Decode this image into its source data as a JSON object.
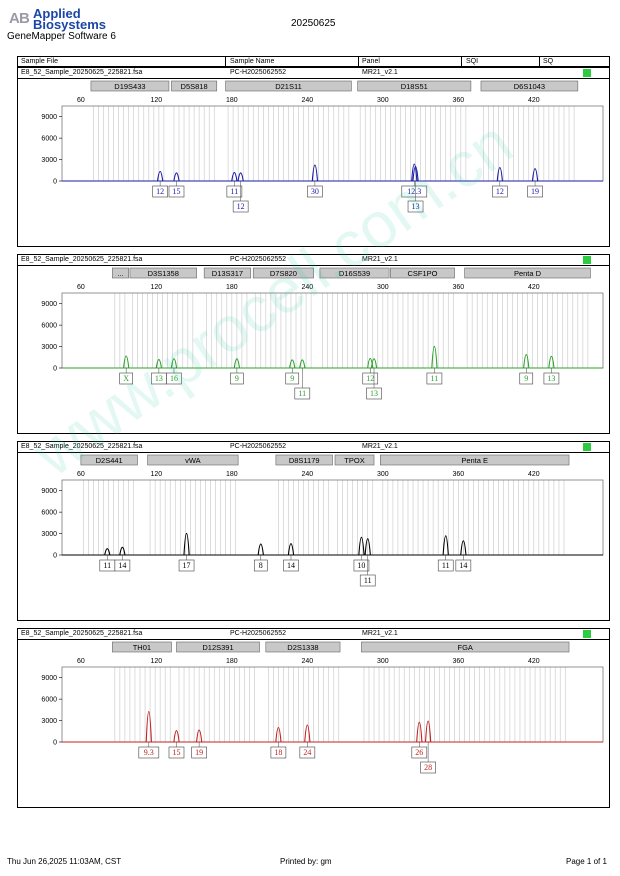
{
  "header": {
    "brand_line1": "Applied",
    "brand_line2": "Biosystems",
    "software": "GeneMapper Software 6",
    "run_date": "20250625"
  },
  "columns": [
    "Sample File",
    "Sample Name",
    "Panel",
    "SQI",
    "SQ"
  ],
  "footer": {
    "printed_at": "Thu Jun 26,2025 11:03AM, CST",
    "printed_by": "Printed by: gm",
    "page": "Page 1 of 1"
  },
  "watermark": "www.procell.com.cn",
  "colors": {
    "blue": "#1a1aa6",
    "green": "#2ca02c",
    "black": "#000000",
    "red": "#c02020",
    "sq_ok": "#2ecc40"
  },
  "chart_data": [
    {
      "type": "line",
      "sample_file": "E8_52_Sample_20250625_225821.fsa",
      "sample_name": "PC-H2025062552",
      "panel": "MR21_v2.1",
      "color": "#1a1aa6",
      "xlim": [
        45,
        475
      ],
      "ylim": [
        0,
        10500
      ],
      "x_ticks": [
        60,
        120,
        180,
        240,
        300,
        360,
        420
      ],
      "y_ticks": [
        0,
        3000,
        6000,
        9000
      ],
      "markers": [
        {
          "name": "D19S433",
          "range": [
            68,
            130
          ]
        },
        {
          "name": "D5S818",
          "range": [
            132,
            168
          ]
        },
        {
          "name": "D21S11",
          "range": [
            175,
            275
          ]
        },
        {
          "name": "D18S51",
          "range": [
            280,
            370
          ]
        },
        {
          "name": "D6S1043",
          "range": [
            378,
            455
          ]
        }
      ],
      "peaks": [
        {
          "x": 123,
          "h": 2100,
          "labels": [
            "12"
          ]
        },
        {
          "x": 136,
          "h": 1700,
          "labels": [
            "15"
          ]
        },
        {
          "x": 182,
          "h": 1800,
          "labels": [
            "11"
          ]
        },
        {
          "x": 187,
          "h": 1700,
          "labels": [
            "12"
          ]
        },
        {
          "x": 246,
          "h": 3900,
          "labels": [
            "30"
          ]
        },
        {
          "x": 325,
          "h": 4200,
          "labels": [
            "12.3"
          ]
        },
        {
          "x": 326,
          "h": 3500,
          "labels": [
            "13"
          ]
        },
        {
          "x": 393,
          "h": 3200,
          "labels": [
            "12"
          ]
        },
        {
          "x": 421,
          "h": 2900,
          "labels": [
            "19"
          ]
        }
      ],
      "label_rows": [
        0,
        0,
        0,
        1,
        0,
        0,
        1,
        0,
        0
      ]
    },
    {
      "type": "line",
      "sample_file": "E8_52_Sample_20250625_225821.fsa",
      "sample_name": "PC-H2025062552",
      "panel": "MR21_v2.1",
      "color": "#2ca02c",
      "xlim": [
        45,
        475
      ],
      "ylim": [
        0,
        10500
      ],
      "x_ticks": [
        60,
        120,
        180,
        240,
        300,
        360,
        420
      ],
      "y_ticks": [
        0,
        3000,
        6000,
        9000
      ],
      "markers": [
        {
          "name": "...",
          "range": [
            85,
            98
          ]
        },
        {
          "name": "D3S1358",
          "range": [
            99,
            152
          ]
        },
        {
          "name": "D13S317",
          "range": [
            158,
            195
          ]
        },
        {
          "name": "D7S820",
          "range": [
            197,
            245
          ]
        },
        {
          "name": "D16S539",
          "range": [
            250,
            305
          ]
        },
        {
          "name": "CSF1PO",
          "range": [
            306,
            357
          ]
        },
        {
          "name": "Penta D",
          "range": [
            365,
            465
          ]
        }
      ],
      "peaks": [
        {
          "x": 96,
          "h": 2800,
          "labels": [
            "X"
          ]
        },
        {
          "x": 122,
          "h": 1800,
          "labels": [
            "13"
          ]
        },
        {
          "x": 134,
          "h": 2000,
          "labels": [
            "16"
          ]
        },
        {
          "x": 184,
          "h": 2000,
          "labels": [
            "9"
          ]
        },
        {
          "x": 228,
          "h": 1700,
          "labels": [
            "9"
          ]
        },
        {
          "x": 236,
          "h": 1700,
          "labels": [
            "11"
          ]
        },
        {
          "x": 290,
          "h": 2100,
          "labels": [
            "12"
          ]
        },
        {
          "x": 293,
          "h": 2000,
          "labels": [
            "13"
          ]
        },
        {
          "x": 341,
          "h": 5500,
          "labels": [
            "11"
          ]
        },
        {
          "x": 414,
          "h": 3200,
          "labels": [
            "9"
          ]
        },
        {
          "x": 434,
          "h": 2700,
          "labels": [
            "13"
          ]
        }
      ],
      "label_rows": [
        0,
        0,
        0,
        0,
        0,
        1,
        0,
        1,
        0,
        0,
        0
      ]
    },
    {
      "type": "line",
      "sample_file": "E8_52_Sample_20250625_225821.fsa",
      "sample_name": "PC-H2025062552",
      "panel": "MR21_v2.1",
      "color": "#000000",
      "xlim": [
        45,
        475
      ],
      "ylim": [
        0,
        10500
      ],
      "x_ticks": [
        60,
        120,
        180,
        240,
        300,
        360,
        420
      ],
      "y_ticks": [
        0,
        3000,
        6000,
        9000
      ],
      "markers": [
        {
          "name": "D2S441",
          "range": [
            60,
            105
          ]
        },
        {
          "name": "vWA",
          "range": [
            113,
            185
          ]
        },
        {
          "name": "D8S1179",
          "range": [
            215,
            260
          ]
        },
        {
          "name": "TPOX",
          "range": [
            262,
            293
          ]
        },
        {
          "name": "Penta E",
          "range": [
            298,
            448
          ]
        }
      ],
      "peaks": [
        {
          "x": 81,
          "h": 1200,
          "labels": [
            "11"
          ]
        },
        {
          "x": 93,
          "h": 1600,
          "labels": [
            "14"
          ]
        },
        {
          "x": 144,
          "h": 5500,
          "labels": [
            "17"
          ]
        },
        {
          "x": 203,
          "h": 2500,
          "labels": [
            "8"
          ]
        },
        {
          "x": 227,
          "h": 2600,
          "labels": [
            "14"
          ]
        },
        {
          "x": 283,
          "h": 4400,
          "labels": [
            "10"
          ]
        },
        {
          "x": 288,
          "h": 4000,
          "labels": [
            "11"
          ]
        },
        {
          "x": 350,
          "h": 4800,
          "labels": [
            "11"
          ]
        },
        {
          "x": 364,
          "h": 3400,
          "labels": [
            "14"
          ]
        }
      ],
      "label_rows": [
        0,
        0,
        0,
        0,
        0,
        0,
        1,
        0,
        0
      ]
    },
    {
      "type": "line",
      "sample_file": "E8_52_Sample_20250625_225821.fsa",
      "sample_name": "PC-H2025062552",
      "panel": "MR21_v2.1",
      "color": "#c02020",
      "xlim": [
        45,
        475
      ],
      "ylim": [
        0,
        10500
      ],
      "x_ticks": [
        60,
        120,
        180,
        240,
        300,
        360,
        420
      ],
      "y_ticks": [
        0,
        3000,
        6000,
        9000
      ],
      "markers": [
        {
          "name": "TH01",
          "range": [
            85,
            132
          ]
        },
        {
          "name": "D12S391",
          "range": [
            136,
            202
          ]
        },
        {
          "name": "D2S1338",
          "range": [
            207,
            266
          ]
        },
        {
          "name": "FGA",
          "range": [
            283,
            448
          ]
        }
      ],
      "peaks": [
        {
          "x": 114,
          "h": 8000,
          "labels": [
            "9.3"
          ]
        },
        {
          "x": 136,
          "h": 2600,
          "labels": [
            "15"
          ]
        },
        {
          "x": 154,
          "h": 2800,
          "labels": [
            "19"
          ]
        },
        {
          "x": 217,
          "h": 3500,
          "labels": [
            "18"
          ]
        },
        {
          "x": 240,
          "h": 4200,
          "labels": [
            "24"
          ]
        },
        {
          "x": 329,
          "h": 5000,
          "labels": [
            "26"
          ]
        },
        {
          "x": 336,
          "h": 5300,
          "labels": [
            "28"
          ]
        }
      ],
      "label_rows": [
        0,
        0,
        0,
        0,
        0,
        0,
        1
      ]
    }
  ]
}
